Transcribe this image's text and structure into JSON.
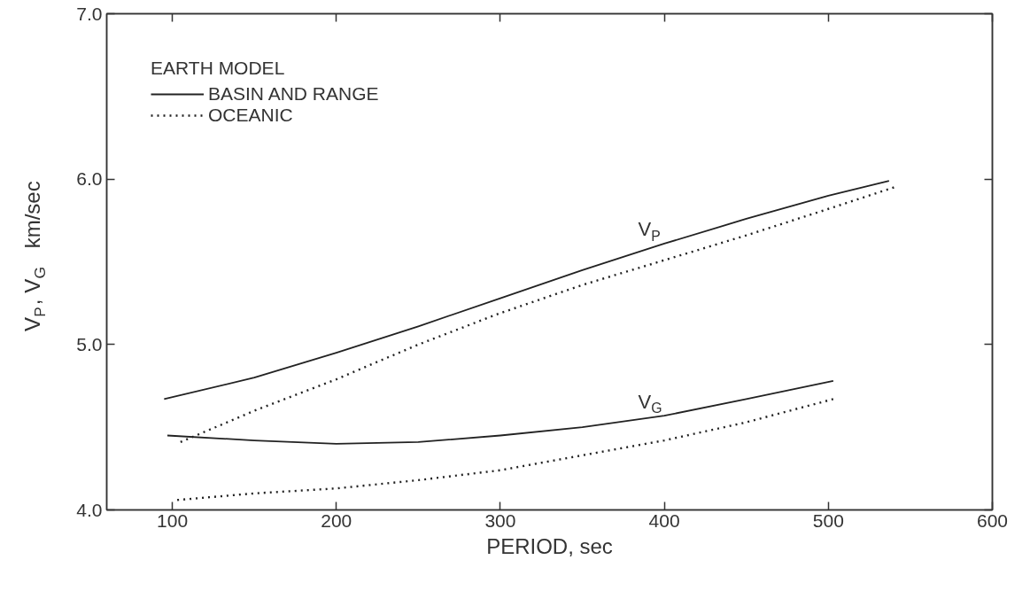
{
  "chart_data": {
    "type": "line",
    "xlabel": "PERIOD, sec",
    "ylabel": "V$_{P}$, V$_{G}$  km/sec",
    "legend_title": "EARTH MODEL",
    "legend": "top left",
    "grid": false,
    "marker": "none",
    "xlim": [
      60,
      600
    ],
    "xticks": [
      100,
      200,
      300,
      400,
      500,
      600
    ],
    "ylim": [
      4,
      7
    ],
    "yticks": [
      {
        "value": 4,
        "label": "4.0"
      },
      {
        "value": 5,
        "label": "5.0"
      },
      {
        "value": 6,
        "label": "6.0"
      },
      {
        "value": 7,
        "label": "7.0"
      }
    ],
    "series": [
      {
        "name": "BASIN AND RANGE",
        "color": "#222222",
        "line_style": "solid",
        "x": [
          95,
          150,
          200,
          250,
          300,
          350,
          400,
          450,
          500,
          537
        ],
        "values": [
          4.67,
          4.8,
          4.95,
          5.11,
          5.28,
          5.45,
          5.61,
          5.76,
          5.9,
          5.99
        ]
      },
      {
        "name": "OCEANIC",
        "color": "#222222",
        "line_style": "dotted",
        "x": [
          105,
          150,
          200,
          250,
          300,
          350,
          400,
          450,
          500,
          540
        ],
        "values": [
          4.41,
          4.6,
          4.79,
          5.0,
          5.19,
          5.36,
          5.51,
          5.66,
          5.82,
          5.95
        ]
      },
      {
        "color": "#222222",
        "line_style": "solid",
        "x": [
          97,
          150,
          200,
          250,
          300,
          350,
          400,
          450,
          503
        ],
        "values": [
          4.45,
          4.42,
          4.4,
          4.41,
          4.45,
          4.5,
          4.57,
          4.67,
          4.78
        ]
      },
      {
        "color": "#222222",
        "line_style": "dotted",
        "x": [
          103,
          150,
          200,
          250,
          300,
          350,
          400,
          450,
          503
        ],
        "values": [
          4.06,
          4.1,
          4.13,
          4.18,
          4.24,
          4.33,
          4.42,
          4.53,
          4.67
        ]
      }
    ],
    "annotations": [
      {
        "text": "V$_{P}$",
        "x": 400,
        "y": 5.61
      },
      {
        "text": "V$_{G}$",
        "x": 400,
        "y": 4.57
      }
    ]
  }
}
